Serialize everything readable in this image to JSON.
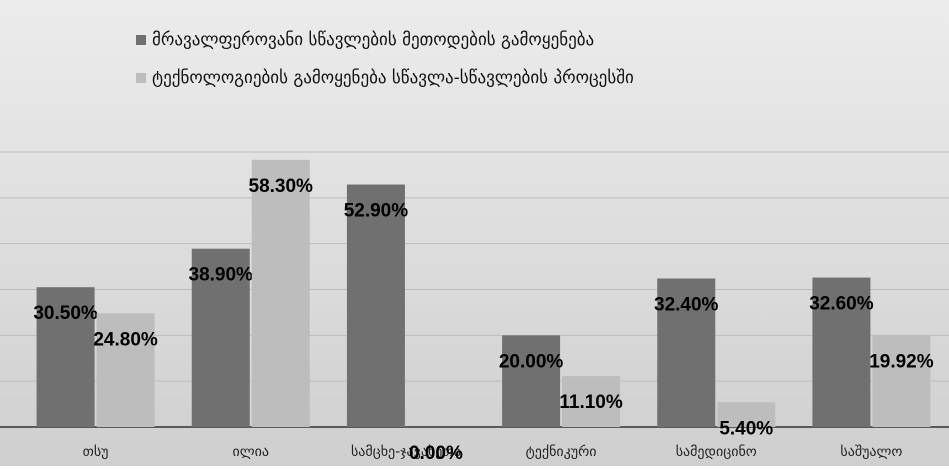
{
  "chart_data": {
    "type": "bar",
    "categories": [
      "თსუ",
      "ილია",
      "სამცხე-ჯავახეთი",
      "ტექნიკური",
      "სამედიცინო",
      "საშუალო"
    ],
    "series": [
      {
        "name": "მრავალფეროვანი სწავლების მეთოდების გამოყენება",
        "color": "#707070",
        "values": [
          30.5,
          38.9,
          52.9,
          20.0,
          32.4,
          32.6
        ],
        "value_labels": [
          "30.50%",
          "38.90%",
          "52.90%",
          "20.00%",
          "32.40%",
          "32.60%"
        ]
      },
      {
        "name": "ტექნოლოგიების გამოყენება სწავლა-სწავლების პროცესში",
        "color": "#bdbdbd",
        "values": [
          24.8,
          58.3,
          0.0,
          11.1,
          5.4,
          19.92
        ],
        "value_labels": [
          "24.80%",
          "58.30%",
          "0.00%",
          "11.10%",
          "5.40%",
          "19.92%"
        ]
      }
    ],
    "ylim": [
      0,
      60
    ],
    "yticks": [
      0,
      10,
      20,
      30,
      40,
      50,
      60
    ],
    "grid": true
  }
}
